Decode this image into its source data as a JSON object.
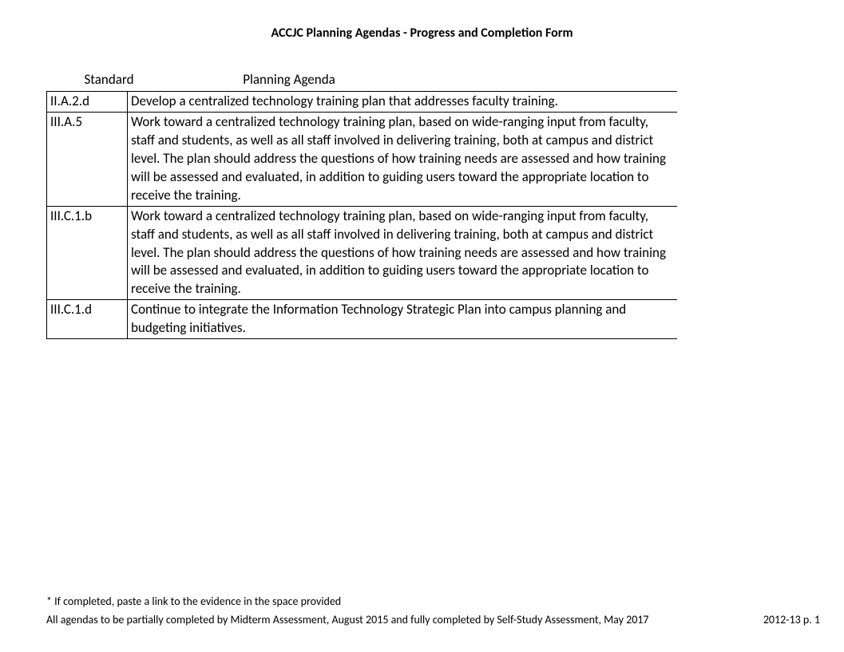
{
  "title": "ACCJC Planning Agendas - Progress and Completion Form",
  "headers": {
    "standard": "Standard",
    "agenda": "Planning Agenda"
  },
  "rows": [
    {
      "standard": "II.A.2.d",
      "agenda": "Develop a centralized technology training plan that addresses faculty training."
    },
    {
      "standard": "III.A.5",
      "agenda": "Work toward a centralized technology training plan, based on wide-ranging input from faculty, staff and students, as well as all staff involved in delivering training, both at campus and district level. The plan should address the questions of how training needs are assessed and how training will be assessed and evaluated, in addition to guiding users toward the appropriate location to receive the training."
    },
    {
      "standard": "III.C.1.b",
      "agenda": "Work toward a centralized technology training plan, based on wide-ranging input from faculty, staff and students, as well as all staff involved in delivering training, both at campus and district level. The plan should address the questions of how training needs are assessed and how training will be assessed and evaluated, in addition to guiding users toward the appropriate location to receive the training."
    },
    {
      "standard": "III.C.1.d",
      "agenda": "Continue to integrate the Information Technology Strategic Plan into campus planning and budgeting initiatives."
    }
  ],
  "footer": {
    "note": "* If completed, paste a link to the evidence in the space provided",
    "deadline": "All agendas to be partially completed by Midterm Assessment, August 2015 and fully completed by Self-Study Assessment, May 2017",
    "page": "2012-13 p.  1"
  },
  "styling": {
    "background_color": "#ffffff",
    "text_color": "#000000",
    "border_color": "#000000",
    "title_fontsize": 16,
    "body_fontsize": 17,
    "footer_fontsize": 14,
    "font_family": "Calibri",
    "col_standard_width": 157,
    "col_agenda_width": 633
  }
}
